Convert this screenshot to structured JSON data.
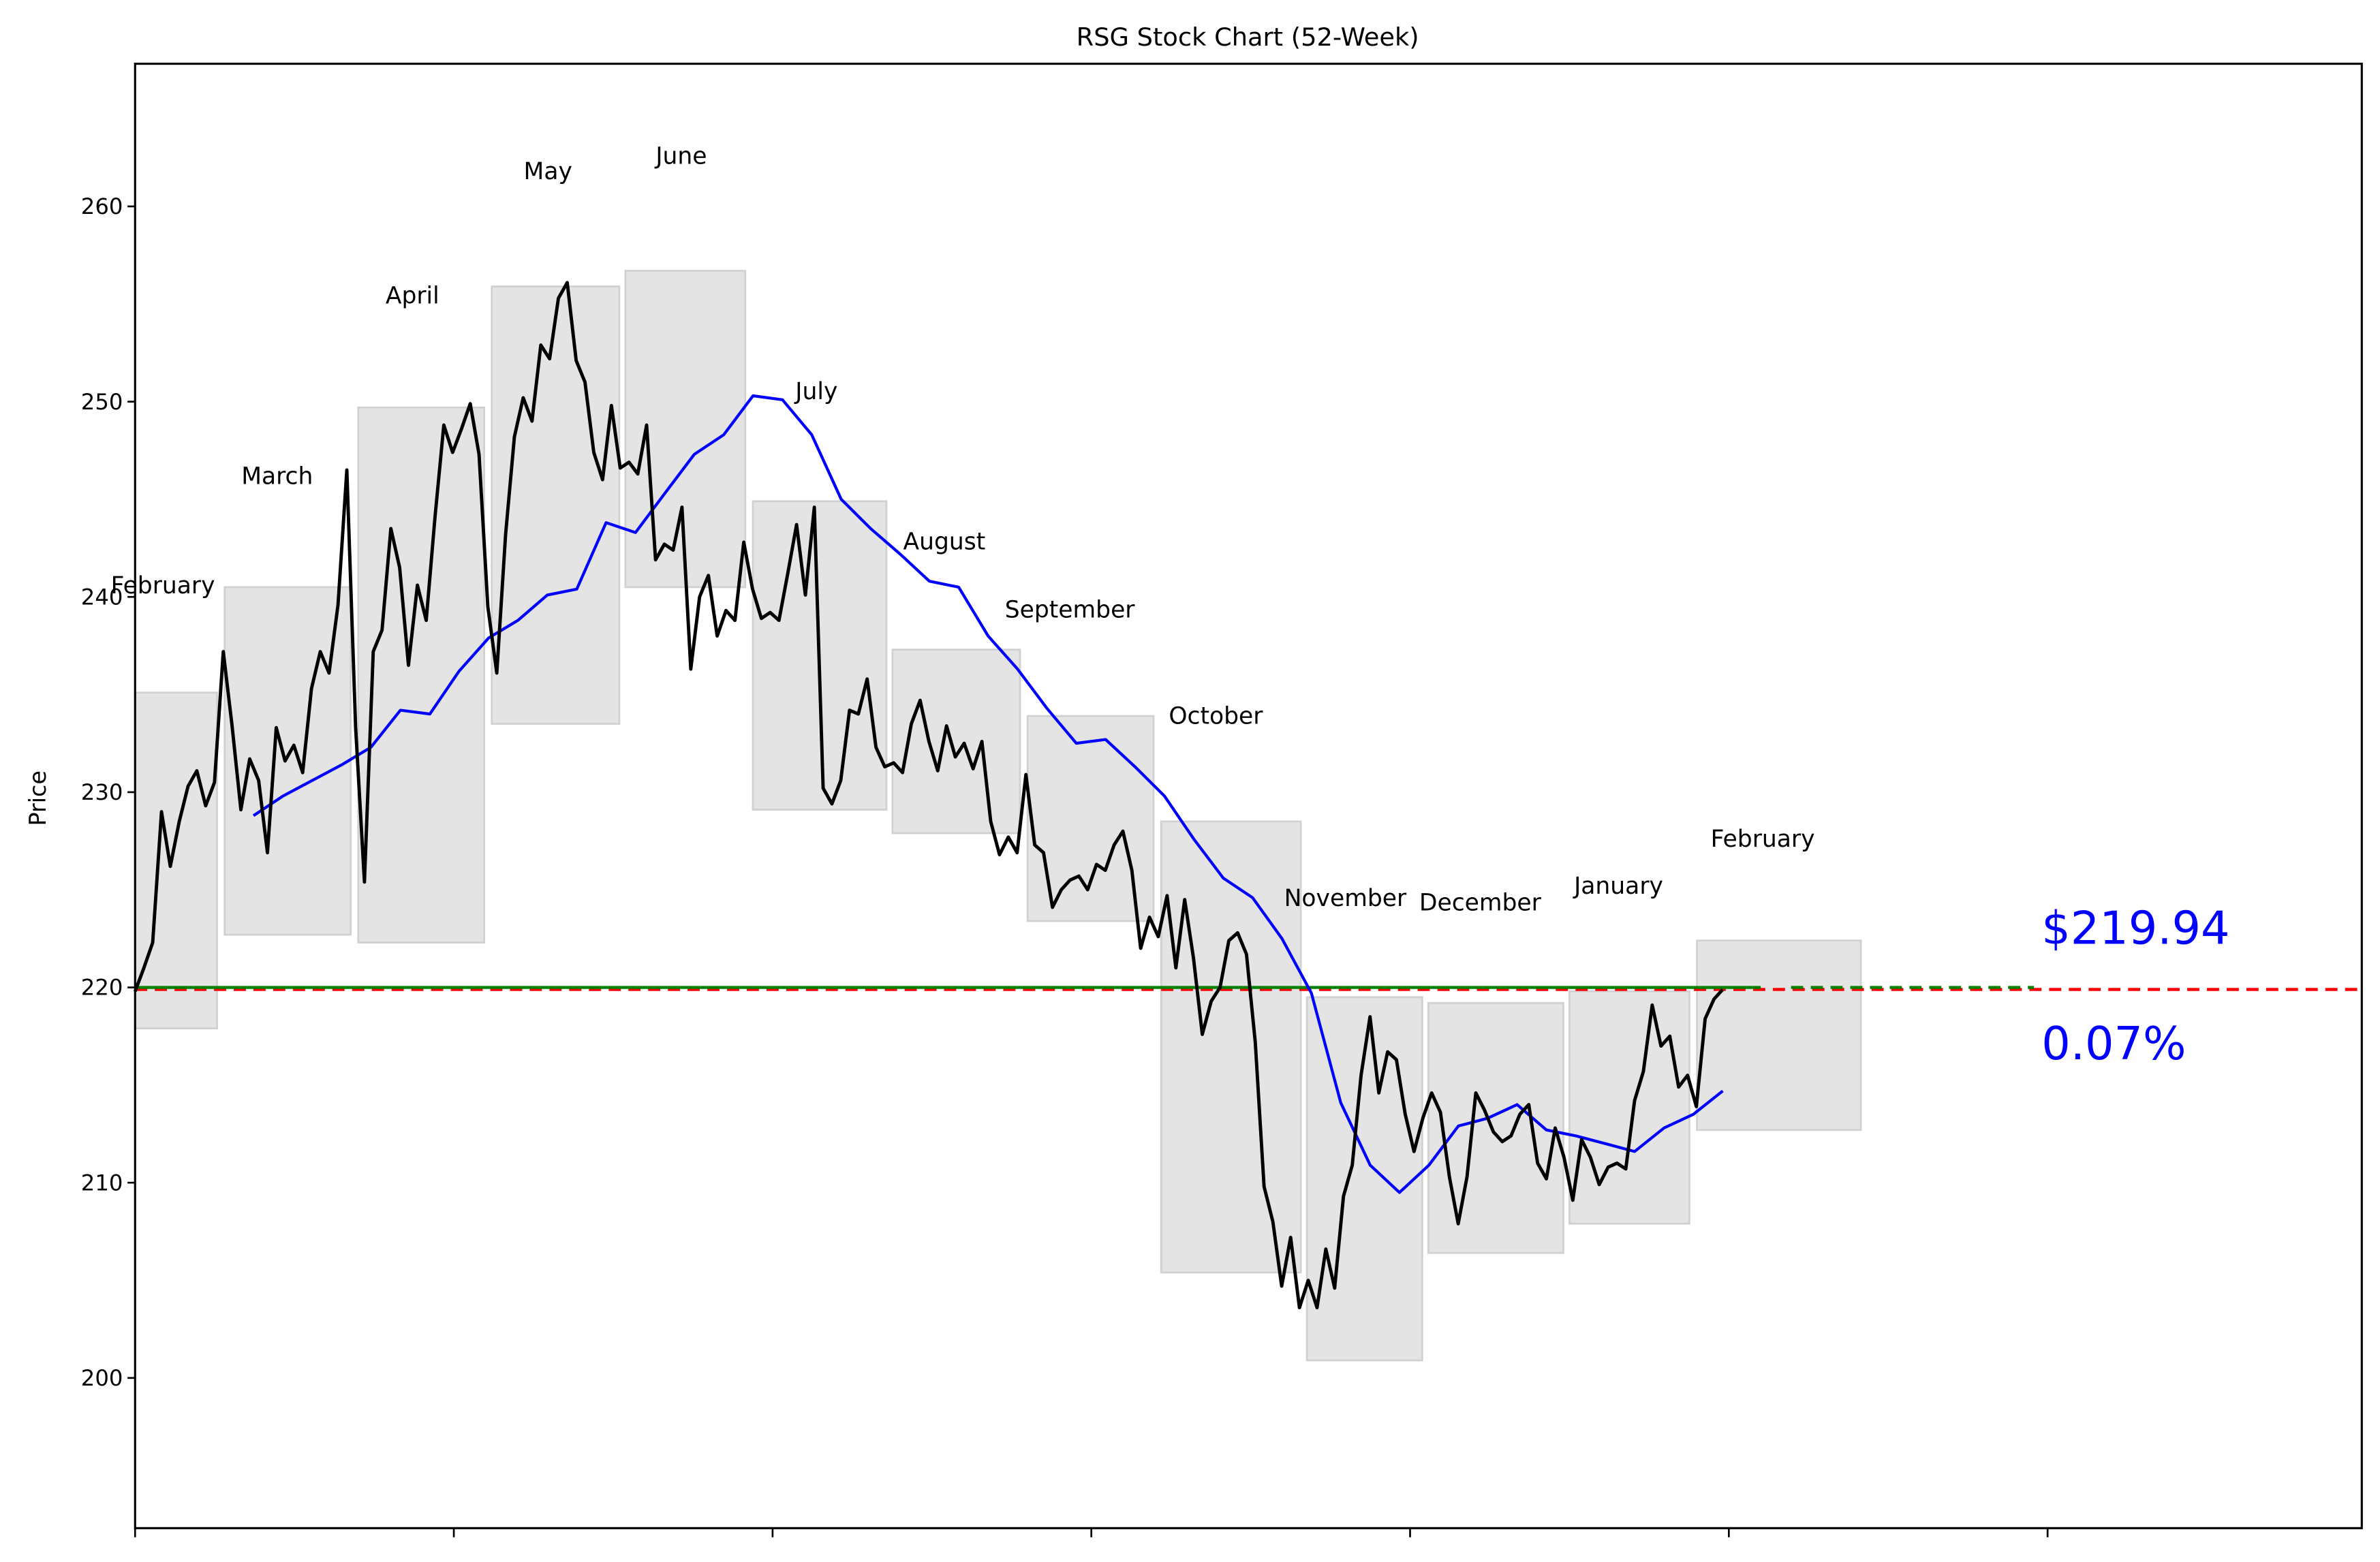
{
  "chart_data": {
    "type": "line",
    "title": "RSG Stock Chart (52-Week)",
    "xlabel": "",
    "ylabel": "Price",
    "ylim": [
      192.7,
      267.3
    ],
    "yticks": [
      200,
      210,
      220,
      230,
      240,
      250,
      260
    ],
    "xtick_count": 7,
    "xtick_labels": [],
    "grid": false,
    "legend": null,
    "current_price_label": "$219.94",
    "change_label": "0.07%",
    "reference_price": 219.8,
    "colors": {
      "price_line": "#000000",
      "moving_average": "#0000ff",
      "reference_solid": "#008000",
      "reference_dashed": "#ff0000",
      "month_box_fill": "#e4e4e4",
      "month_box_edge": "#d0d0d0",
      "annotation_text": "#0000ff"
    },
    "month_ranges": [
      {
        "label": "February",
        "low": 217.9,
        "high": 235.1
      },
      {
        "label": "March",
        "low": 222.7,
        "high": 240.5
      },
      {
        "label": "April",
        "low": 222.3,
        "high": 249.7
      },
      {
        "label": "May",
        "low": 233.5,
        "high": 255.9
      },
      {
        "label": "June",
        "low": 240.5,
        "high": 256.7
      },
      {
        "label": "July",
        "low": 229.1,
        "high": 244.9
      },
      {
        "label": "August",
        "low": 227.9,
        "high": 237.3
      },
      {
        "label": "September",
        "low": 223.4,
        "high": 233.9
      },
      {
        "label": "October",
        "low": 205.4,
        "high": 228.5
      },
      {
        "label": "November",
        "low": 200.9,
        "high": 219.5
      },
      {
        "label": "December",
        "low": 206.4,
        "high": 219.2
      },
      {
        "label": "January",
        "low": 207.9,
        "high": 219.8
      },
      {
        "label": "February",
        "low": 212.7,
        "high": 222.4
      }
    ],
    "series": [
      {
        "name": "Close",
        "approx_values": [
          219.8,
          221.0,
          222.3,
          229.0,
          226.2,
          228.5,
          230.3,
          231.1,
          229.3,
          230.5,
          237.2,
          233.4,
          229.1,
          231.7,
          230.6,
          226.9,
          233.3,
          231.6,
          232.4,
          231.0,
          235.3,
          237.2,
          236.1,
          239.6,
          246.5,
          233.3,
          225.4,
          237.2,
          238.3,
          243.5,
          241.5,
          236.5,
          240.6,
          238.8,
          244.1,
          248.8,
          247.4,
          248.6,
          249.9,
          247.3,
          239.5,
          236.1,
          243.2,
          248.2,
          250.2,
          249.0,
          252.9,
          252.2,
          255.3,
          256.1,
          252.1,
          251.0,
          247.4,
          246.0,
          249.8,
          246.6,
          246.9,
          246.3,
          248.8,
          241.9,
          242.7,
          242.4,
          244.6,
          236.3,
          240.0,
          241.1,
          238.0,
          239.3,
          238.8,
          242.8,
          240.4,
          238.9,
          239.2,
          238.8,
          241.2,
          243.7,
          240.1,
          244.6,
          230.2,
          229.4,
          230.6,
          234.2,
          234.0,
          235.8,
          232.3,
          231.3,
          231.5,
          231.0,
          233.5,
          234.7,
          232.6,
          231.1,
          233.4,
          231.8,
          232.5,
          231.2,
          232.6,
          228.5,
          226.8,
          227.7,
          226.9,
          230.9,
          227.3,
          226.9,
          224.1,
          225.0,
          225.5,
          225.7,
          225.0,
          226.3,
          226.0,
          227.3,
          228.0,
          226.0,
          222.0,
          223.6,
          222.6,
          224.7,
          221.0,
          224.5,
          221.5,
          217.6,
          219.3,
          220.0,
          222.4,
          222.8,
          221.7,
          217.2,
          209.8,
          208.0,
          204.7,
          207.2,
          203.6,
          205.0,
          203.6,
          206.6,
          204.6,
          209.3,
          210.9,
          215.5,
          218.5,
          214.6,
          216.7,
          216.3,
          213.5,
          211.6,
          213.3,
          214.6,
          213.6,
          210.3,
          207.9,
          210.3,
          214.6,
          213.7,
          212.6,
          212.1,
          212.4,
          213.5,
          214.0,
          211.0,
          210.2,
          212.8,
          211.3,
          209.1,
          212.2,
          211.3,
          209.9,
          210.8,
          211.0,
          210.7,
          214.2,
          215.7,
          219.1,
          217.0,
          217.5,
          214.9,
          215.5,
          213.9,
          218.4,
          219.4,
          219.9
        ]
      },
      {
        "name": "Moving Average",
        "approx_values": [
          228.8,
          229.8,
          230.6,
          231.4,
          232.3,
          234.2,
          234.0,
          236.2,
          237.9,
          238.8,
          240.1,
          240.4,
          243.8,
          243.3,
          245.3,
          247.3,
          248.3,
          250.3,
          250.1,
          248.3,
          245.0,
          243.5,
          242.2,
          240.8,
          240.5,
          238.0,
          236.3,
          234.3,
          232.5,
          232.7,
          231.3,
          229.8,
          227.6,
          225.6,
          224.6,
          222.5,
          219.7,
          214.1,
          210.9,
          209.5,
          210.9,
          212.9,
          213.3,
          214.0,
          212.7,
          212.4,
          212.0,
          211.6,
          212.8,
          213.5,
          214.7
        ]
      }
    ]
  }
}
